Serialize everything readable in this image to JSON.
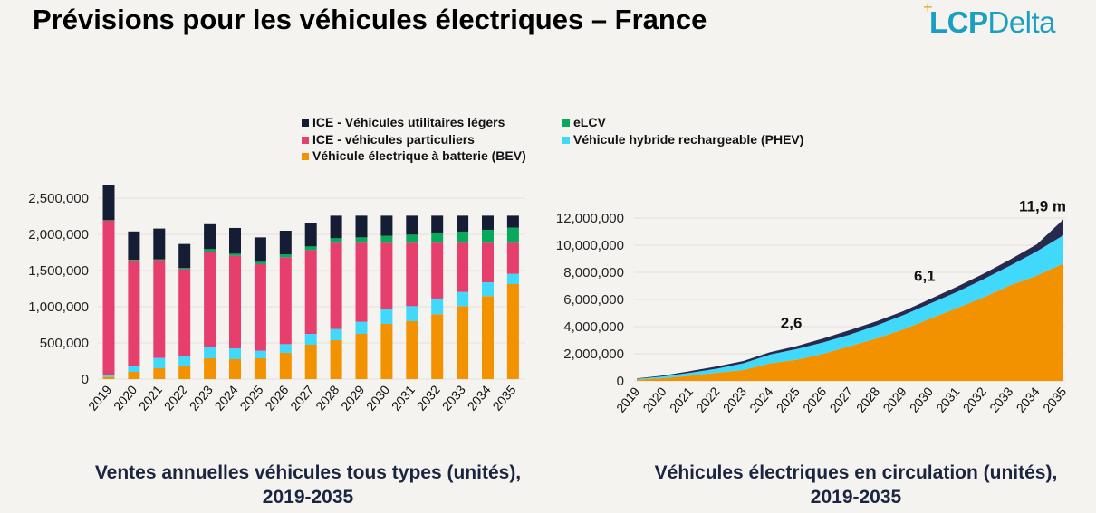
{
  "header": {
    "title": "Prévisions pour les véhicules électriques – France",
    "logo": "LCPDelta"
  },
  "colors": {
    "ice_lcv": "#141d33",
    "ice_pc": "#e63e6d",
    "elcv": "#0aa85a",
    "phev": "#40d8fb",
    "bev": "#f39200",
    "ev_total_dark": "#262a4f"
  },
  "chart_data": [
    {
      "type": "bar",
      "stacked": true,
      "caption": [
        "Ventes annuelles véhicules tous types (unités),",
        "2019-2035"
      ],
      "categories": [
        "2019",
        "2020",
        "2021",
        "2022",
        "2023",
        "2024",
        "2025",
        "2026",
        "2027",
        "2028",
        "2029",
        "2030",
        "2031",
        "2032",
        "2033",
        "2034",
        "2035"
      ],
      "ylim": [
        0,
        2750000
      ],
      "yticks": [
        "0",
        "500,000",
        "1,000,000",
        "1,500,000",
        "2,000,000",
        "2,500,000"
      ],
      "ytick_values": [
        0,
        500000,
        1000000,
        1500000,
        2000000,
        2500000
      ],
      "grid": true,
      "legend_position": "top",
      "series": [
        {
          "name": "Véhicule électrique à batterie (BEV)",
          "key": "bev",
          "values": [
            30000,
            100000,
            150000,
            188000,
            288000,
            275000,
            288000,
            363000,
            475000,
            538000,
            625000,
            763000,
            800000,
            896000,
            1008000,
            1146000,
            1313000
          ]
        },
        {
          "name": "Véhicule hybride rechargeable (PHEV)",
          "key": "phev",
          "values": [
            20000,
            75000,
            142000,
            124000,
            158000,
            150000,
            104000,
            120000,
            150000,
            154000,
            167000,
            200000,
            208000,
            217000,
            196000,
            192000,
            141000
          ]
        },
        {
          "name": "ICE - véhicules particuliers",
          "key": "ice_pc",
          "values": [
            2140000,
            1465000,
            1353000,
            1208000,
            1312000,
            1279000,
            1196000,
            1200000,
            1158000,
            1191000,
            1091000,
            920000,
            875000,
            770000,
            679000,
            545000,
            429000
          ]
        },
        {
          "name": "eLCV",
          "key": "elcv",
          "values": [
            5000,
            10000,
            10000,
            17000,
            38000,
            29000,
            33000,
            42000,
            50000,
            63000,
            75000,
            96000,
            113000,
            130000,
            155000,
            180000,
            209000
          ]
        },
        {
          "name": "ICE - Véhicules utilitaires légers",
          "key": "ice_lcv",
          "values": [
            480000,
            390000,
            425000,
            330000,
            344000,
            355000,
            337000,
            325000,
            317000,
            312000,
            300000,
            279000,
            262000,
            245000,
            220000,
            195000,
            166000
          ]
        }
      ]
    },
    {
      "type": "area",
      "stacked": true,
      "caption": [
        "Véhicules électriques en circulation (unités),",
        "2019-2035"
      ],
      "x": [
        "2019",
        "2020",
        "2021",
        "2022",
        "2023",
        "2024",
        "2025",
        "2026",
        "2027",
        "2028",
        "2029",
        "2030",
        "2031",
        "2032",
        "2033",
        "2034",
        "2035"
      ],
      "ylim": [
        0,
        12000000
      ],
      "yticks": [
        "0",
        "2,000,000",
        "4,000,000",
        "6,000,000",
        "8,000,000",
        "10,000,000",
        "12,000,000"
      ],
      "ytick_values": [
        0,
        2000000,
        4000000,
        6000000,
        8000000,
        10000000,
        12000000
      ],
      "grid": true,
      "series": [
        {
          "key": "bev",
          "values": [
            100000,
            200000,
            380000,
            600000,
            800000,
            1300000,
            1560000,
            2000000,
            2570000,
            3130000,
            3800000,
            4580000,
            5360000,
            6150000,
            7040000,
            7750000,
            8650000
          ]
        },
        {
          "key": "phev",
          "values": [
            50000,
            130000,
            220000,
            300000,
            500000,
            640000,
            790000,
            840000,
            850000,
            960000,
            1050000,
            1120000,
            1190000,
            1340000,
            1450000,
            1790000,
            2080000
          ]
        },
        {
          "key": "elcv",
          "values": [
            30000,
            70000,
            120000,
            170000,
            170000,
            180000,
            220000,
            290000,
            330000,
            310000,
            290000,
            330000,
            380000,
            400000,
            450000,
            520000,
            1170000
          ]
        }
      ],
      "annotations": [
        {
          "x": "2025",
          "label": "2,6"
        },
        {
          "x": "2030",
          "label": "6,1"
        },
        {
          "x": "2035",
          "label": "11,9 m"
        }
      ]
    }
  ]
}
